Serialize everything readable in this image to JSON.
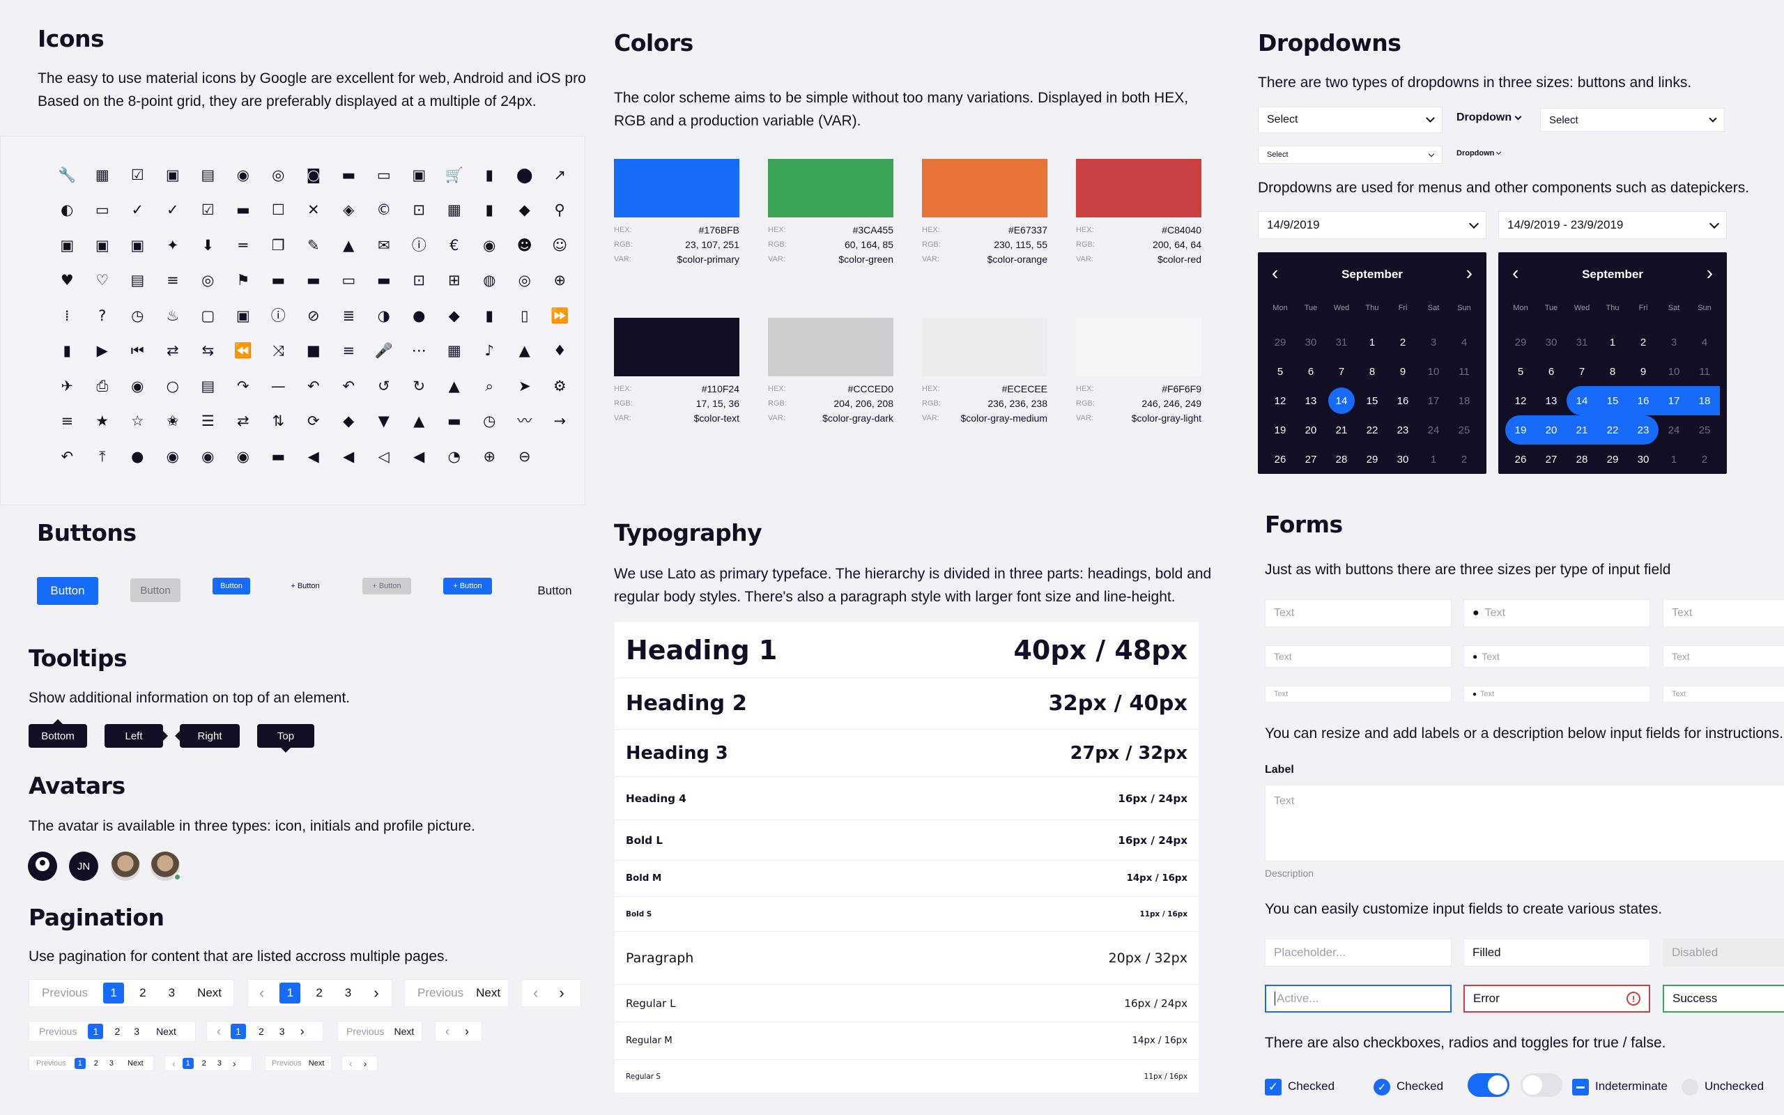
{
  "icons": {
    "title": "Icons",
    "desc_line1": "The easy to use material icons by Google are excellent for web, Android and iOS projec",
    "desc_line2": "Based on the 8-point grid, they are preferably displayed at a multiple of 24px.",
    "glyphs": [
      "🔧",
      "▦",
      "☑",
      "▣",
      "▤",
      "◉",
      "◎",
      "◙",
      "▬",
      "▭",
      "▣",
      "🛒",
      "▮",
      "⬤",
      "↗",
      "◐",
      "▭",
      "✓",
      "✓",
      "☑",
      "▬",
      "☐",
      "✕",
      "◈",
      "©",
      "⊡",
      "▦",
      "▮",
      "◆",
      "⚲",
      "▣",
      "▣",
      "▣",
      "✦",
      "⬇",
      "═",
      "❐",
      "✎",
      "▲",
      "✉",
      "ⓘ",
      "€",
      "◉",
      "☻",
      "☺",
      "♥",
      "♡",
      "▤",
      "≡",
      "◎",
      "⚑",
      "▬",
      "▬",
      "▭",
      "▬",
      "⊡",
      "⊞",
      "◍",
      "◎",
      "⊕",
      "⁞",
      "?",
      "◷",
      "♨",
      "▢",
      "▣",
      "ⓘ",
      "⊘",
      "≣",
      "◑",
      "●",
      "◆",
      "▮",
      "▯",
      "⏩",
      "▮",
      "▶",
      "⏮",
      "⇄",
      "⇆",
      "⏪",
      "⤨",
      "■",
      "≡",
      "🎤",
      "⋯",
      "▦",
      "♪",
      "▲",
      "♦",
      "✈",
      "⎙",
      "◉",
      "○",
      "▤",
      "↷",
      "—",
      "↶",
      "↶",
      "↺",
      "↻",
      "▲",
      "⌕",
      "➤",
      "⚙",
      "≡",
      "★",
      "☆",
      "✬",
      "☰",
      "⇄",
      "⇅",
      "⟳",
      "◆",
      "▼",
      "▲",
      "▬",
      "◷",
      "〰",
      "→",
      "↶",
      "⤒",
      "●",
      "◉",
      "◉",
      "◉",
      "▬",
      "◀",
      "◀",
      "◁",
      "◀",
      "◔",
      "⊕",
      "⊖",
      ""
    ]
  },
  "colors": {
    "title": "Colors",
    "desc_line1": "The color scheme aims to be simple without too many variations. Displayed in both HEX,",
    "desc_line2": "RGB and a production variable (VAR).",
    "labels": {
      "hex": "HEX:",
      "rgb": "RGB:",
      "var": "VAR:"
    },
    "swatches": [
      {
        "hex": "#176BFB",
        "rgb": "23, 107, 251",
        "var": "$color-primary"
      },
      {
        "hex": "#3CA455",
        "rgb": "60, 164, 85",
        "var": "$color-green"
      },
      {
        "hex": "#E67337",
        "rgb": "230, 115, 55",
        "var": "$color-orange"
      },
      {
        "hex": "#C84040",
        "rgb": "200, 64, 64",
        "var": "$color-red"
      },
      {
        "hex": "#110F24",
        "rgb": "17, 15, 36",
        "var": "$color-text"
      },
      {
        "hex": "#CCCED0",
        "rgb": "204, 206, 208",
        "var": "$color-gray-dark"
      },
      {
        "hex": "#ECECEE",
        "rgb": "236, 236, 238",
        "var": "$color-gray-medium"
      },
      {
        "hex": "#F6F6F9",
        "rgb": "246, 246, 249",
        "var": "$color-gray-light"
      }
    ]
  },
  "dropdowns": {
    "title": "Dropdowns",
    "desc1": "There are two types of dropdowns in three sizes: buttons and links.",
    "desc2": "Dropdowns are used for menus and other components such as datepickers.",
    "select_label": "Select",
    "dropdown_label": "Dropdown",
    "date_single": "14/9/2019",
    "date_range": "14/9/2019 - 23/9/2019",
    "month": "September",
    "weekdays": [
      "Mon",
      "Tue",
      "Wed",
      "Thu",
      "Fri",
      "Sat",
      "Sun"
    ],
    "days": [
      "29",
      "30",
      "31",
      "1",
      "2",
      "3",
      "4",
      "5",
      "6",
      "7",
      "8",
      "9",
      "10",
      "11",
      "12",
      "13",
      "14",
      "15",
      "16",
      "17",
      "18",
      "19",
      "20",
      "21",
      "22",
      "23",
      "24",
      "25",
      "26",
      "27",
      "28",
      "29",
      "30",
      "1",
      "2"
    ]
  },
  "buttons": {
    "title": "Buttons",
    "label": "Button",
    "label_plus": "+ Button"
  },
  "tooltips": {
    "title": "Tooltips",
    "desc": "Show additional information on top of an element.",
    "items": [
      "Bottom",
      "Left",
      "Right",
      "Top"
    ]
  },
  "avatars": {
    "title": "Avatars",
    "desc": "The avatar is available in three types: icon, initials and profile picture.",
    "initials": "JN"
  },
  "pagination": {
    "title": "Pagination",
    "desc": "Use pagination for content that are listed accross multiple pages.",
    "previous": "Previous",
    "next": "Next",
    "pages": [
      "1",
      "2",
      "3"
    ]
  },
  "typography": {
    "title": "Typography",
    "desc_line1": "We use Lato as primary typeface. The hierarchy is divided in three parts: headings, bold and",
    "desc_line2": "regular body styles. There's also a paragraph style with larger font size and line-height.",
    "rows": [
      {
        "name": "Heading 1",
        "spec": "40px / 48px"
      },
      {
        "name": "Heading 2",
        "spec": "32px / 40px"
      },
      {
        "name": "Heading 3",
        "spec": "27px / 32px"
      },
      {
        "name": "Heading 4",
        "spec": "16px / 24px"
      },
      {
        "name": "Bold L",
        "spec": "16px / 24px"
      },
      {
        "name": "Bold M",
        "spec": "14px / 16px"
      },
      {
        "name": "Bold S",
        "spec": "11px / 16px"
      },
      {
        "name": "Paragraph",
        "spec": "20px / 32px"
      },
      {
        "name": "Regular L",
        "spec": "16px / 24px"
      },
      {
        "name": "Regular M",
        "spec": "14px / 16px"
      },
      {
        "name": "Regular S",
        "spec": "11px / 16px"
      }
    ]
  },
  "forms": {
    "title": "Forms",
    "desc1": "Just as with buttons there are three sizes per type of input field",
    "desc2": "You can resize and add labels or a description below input fields for instructions.",
    "desc3": "You can easily customize input fields to create various states.",
    "desc4": "There are also checkboxes, radios and toggles for true / false.",
    "text_placeholder": "Text",
    "label": "Label",
    "description": "Description",
    "placeholder": "Placeholder...",
    "filled": "Filled",
    "disabled": "Disabled",
    "active": "Active...",
    "error": "Error",
    "success": "Success",
    "checked": "Checked",
    "indeterminate": "Indeterminate",
    "unchecked": "Unchecked"
  }
}
